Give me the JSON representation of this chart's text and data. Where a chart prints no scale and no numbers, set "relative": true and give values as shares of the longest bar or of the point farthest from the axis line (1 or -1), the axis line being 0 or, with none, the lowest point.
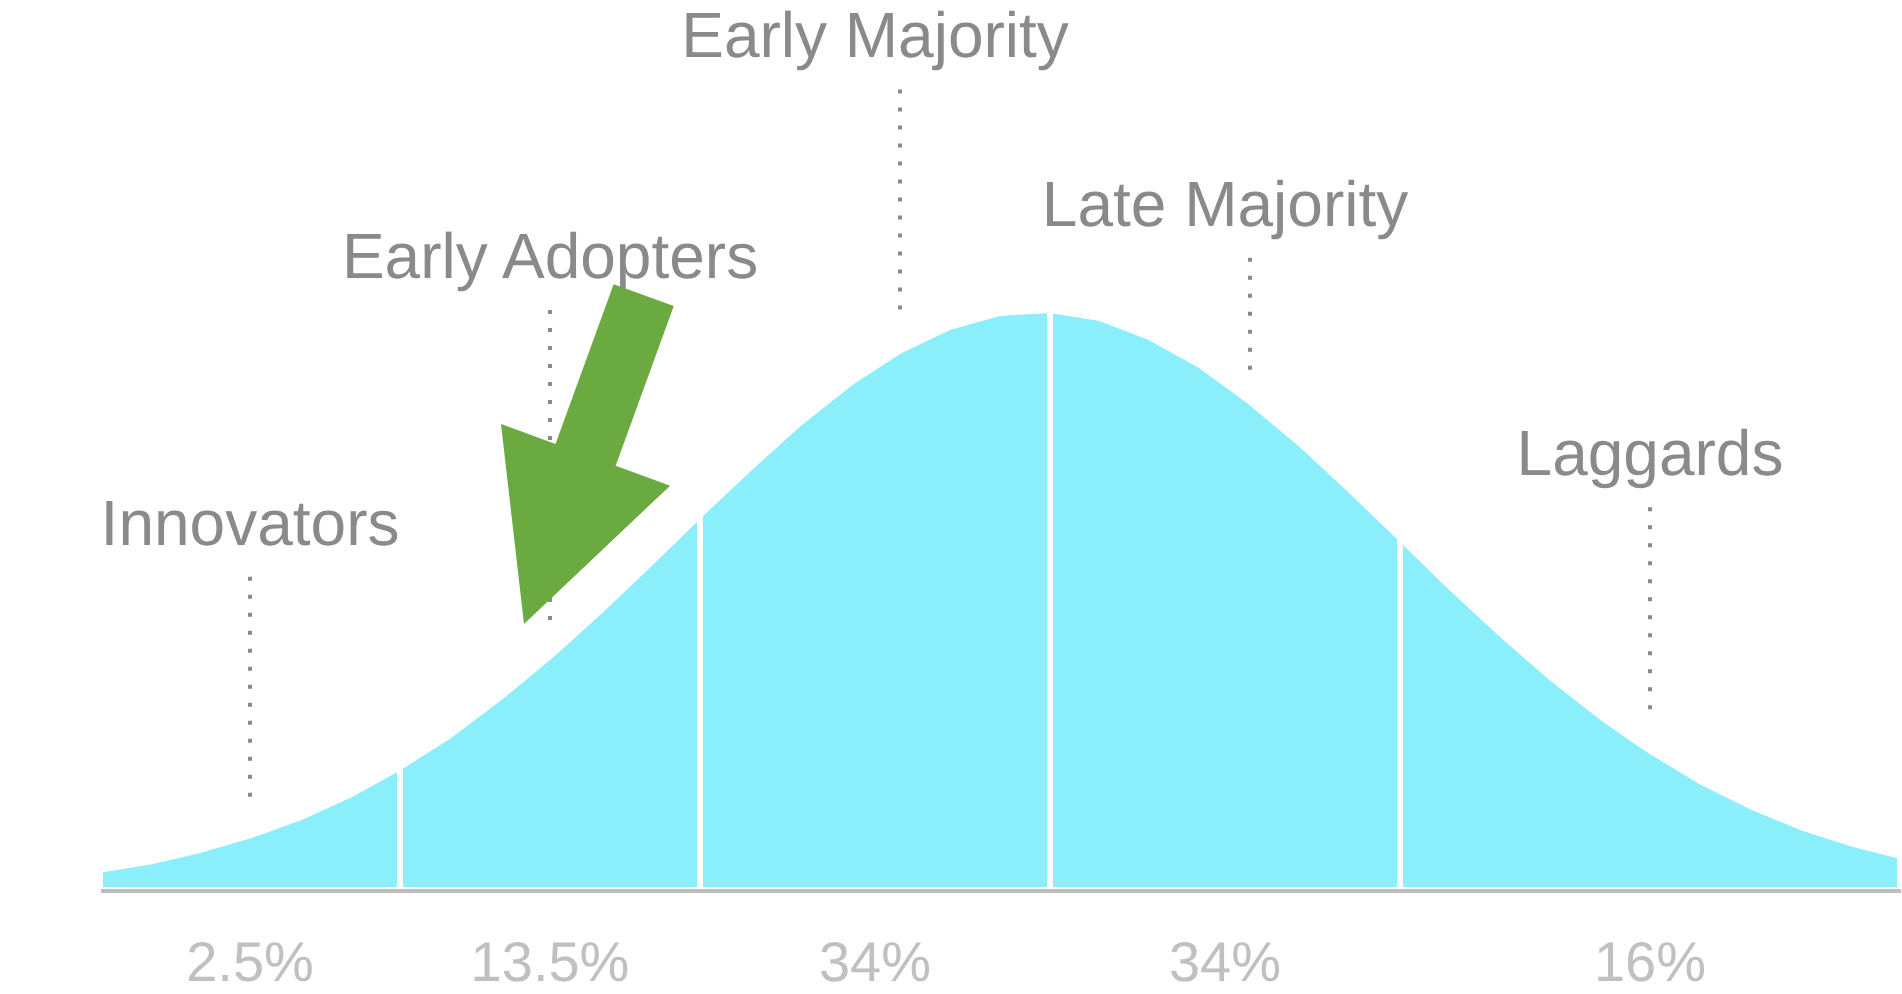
{
  "chart_data": {
    "type": "area",
    "relative": true,
    "legend": false,
    "categories": [
      null,
      null,
      null,
      null,
      null,
      null,
      null,
      null,
      null,
      null,
      null,
      null,
      null,
      null,
      null,
      null,
      null,
      null,
      null,
      null,
      null,
      null,
      null,
      null,
      null,
      null,
      null,
      null,
      null,
      null,
      null,
      null,
      null,
      null,
      null,
      null,
      null
    ],
    "series": [
      {
        "name": "Innovators",
        "color": "#8aeefb",
        "values": [
          0.035,
          0.049,
          0.069,
          0.094,
          0.125,
          0.164,
          0.212,
          null,
          null,
          null,
          null,
          null,
          null,
          null,
          null,
          null,
          null,
          null,
          null,
          null,
          null,
          null,
          null,
          null,
          null,
          null,
          null,
          null,
          null,
          null,
          null,
          null,
          null,
          null,
          null,
          null,
          null
        ]
      },
      {
        "name": "Early Adopters",
        "color": "#8aeefb",
        "values": [
          null,
          null,
          null,
          null,
          null,
          null,
          0.212,
          0.267,
          0.332,
          0.403,
          0.481,
          0.563,
          0.647,
          null,
          null,
          null,
          null,
          null,
          null,
          null,
          null,
          null,
          null,
          null,
          null,
          null,
          null,
          null,
          null,
          null,
          null,
          null,
          null,
          null,
          null,
          null,
          null
        ]
      },
      {
        "name": "Early Majority",
        "color": "#8aeefb",
        "values": [
          null,
          null,
          null,
          null,
          null,
          null,
          null,
          null,
          null,
          null,
          null,
          null,
          0.647,
          0.728,
          0.806,
          0.874,
          0.93,
          0.971,
          0.995,
          1.0,
          null,
          null,
          null,
          null,
          null,
          null,
          null,
          null,
          null,
          null,
          null,
          null,
          null,
          null,
          null,
          null,
          null
        ]
      },
      {
        "name": "Late Majority",
        "color": "#8aeefb",
        "values": [
          null,
          null,
          null,
          null,
          null,
          null,
          null,
          null,
          null,
          null,
          null,
          null,
          null,
          null,
          null,
          null,
          null,
          null,
          null,
          1.0,
          0.986,
          0.953,
          0.905,
          0.842,
          0.77,
          0.69,
          0.607,
          null,
          null,
          null,
          null,
          null,
          null,
          null,
          null,
          null,
          null
        ]
      },
      {
        "name": "Laggards",
        "color": "#8aeefb",
        "values": [
          null,
          null,
          null,
          null,
          null,
          null,
          null,
          null,
          null,
          null,
          null,
          null,
          null,
          null,
          null,
          null,
          null,
          null,
          null,
          null,
          null,
          null,
          null,
          null,
          null,
          null,
          0.607,
          0.523,
          0.443,
          0.368,
          0.3,
          0.24,
          0.188,
          0.145,
          0.109,
          0.081,
          0.059
        ]
      }
    ],
    "annotations": [
      "2.5%",
      "13.5%",
      "34%",
      "34%",
      "16%"
    ]
  }
}
